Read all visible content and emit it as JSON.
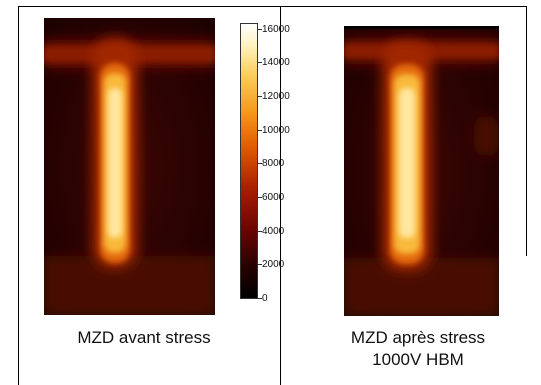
{
  "images": [
    {
      "caption": "MZD avant stress"
    },
    {
      "caption": "MZD après stress\n1000V HBM"
    }
  ],
  "colorbar": {
    "ticks": [
      "16000",
      "14000",
      "12000",
      "10000",
      "8000",
      "6000",
      "4000",
      "2000",
      "0"
    ]
  }
}
